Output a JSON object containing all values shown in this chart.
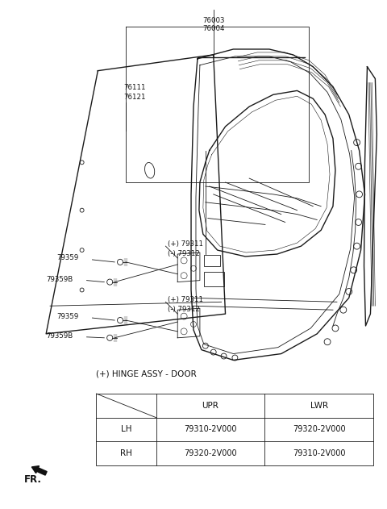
{
  "background_color": "#ffffff",
  "fig_width": 4.8,
  "fig_height": 6.31,
  "dpi": 100,
  "line_color": "#1a1a1a",
  "text_color": "#111111",
  "fontsize_label": 6.2,
  "fontsize_table": 7.5,
  "table_title": "(+) HINGE ASSY - DOOR",
  "table_data": {
    "headers": [
      "",
      "UPR",
      "LWR"
    ],
    "rows": [
      [
        "LH",
        "79310-2V000",
        "79320-2V000"
      ],
      [
        "RH",
        "79320-2V000",
        "79310-2V000"
      ]
    ]
  }
}
